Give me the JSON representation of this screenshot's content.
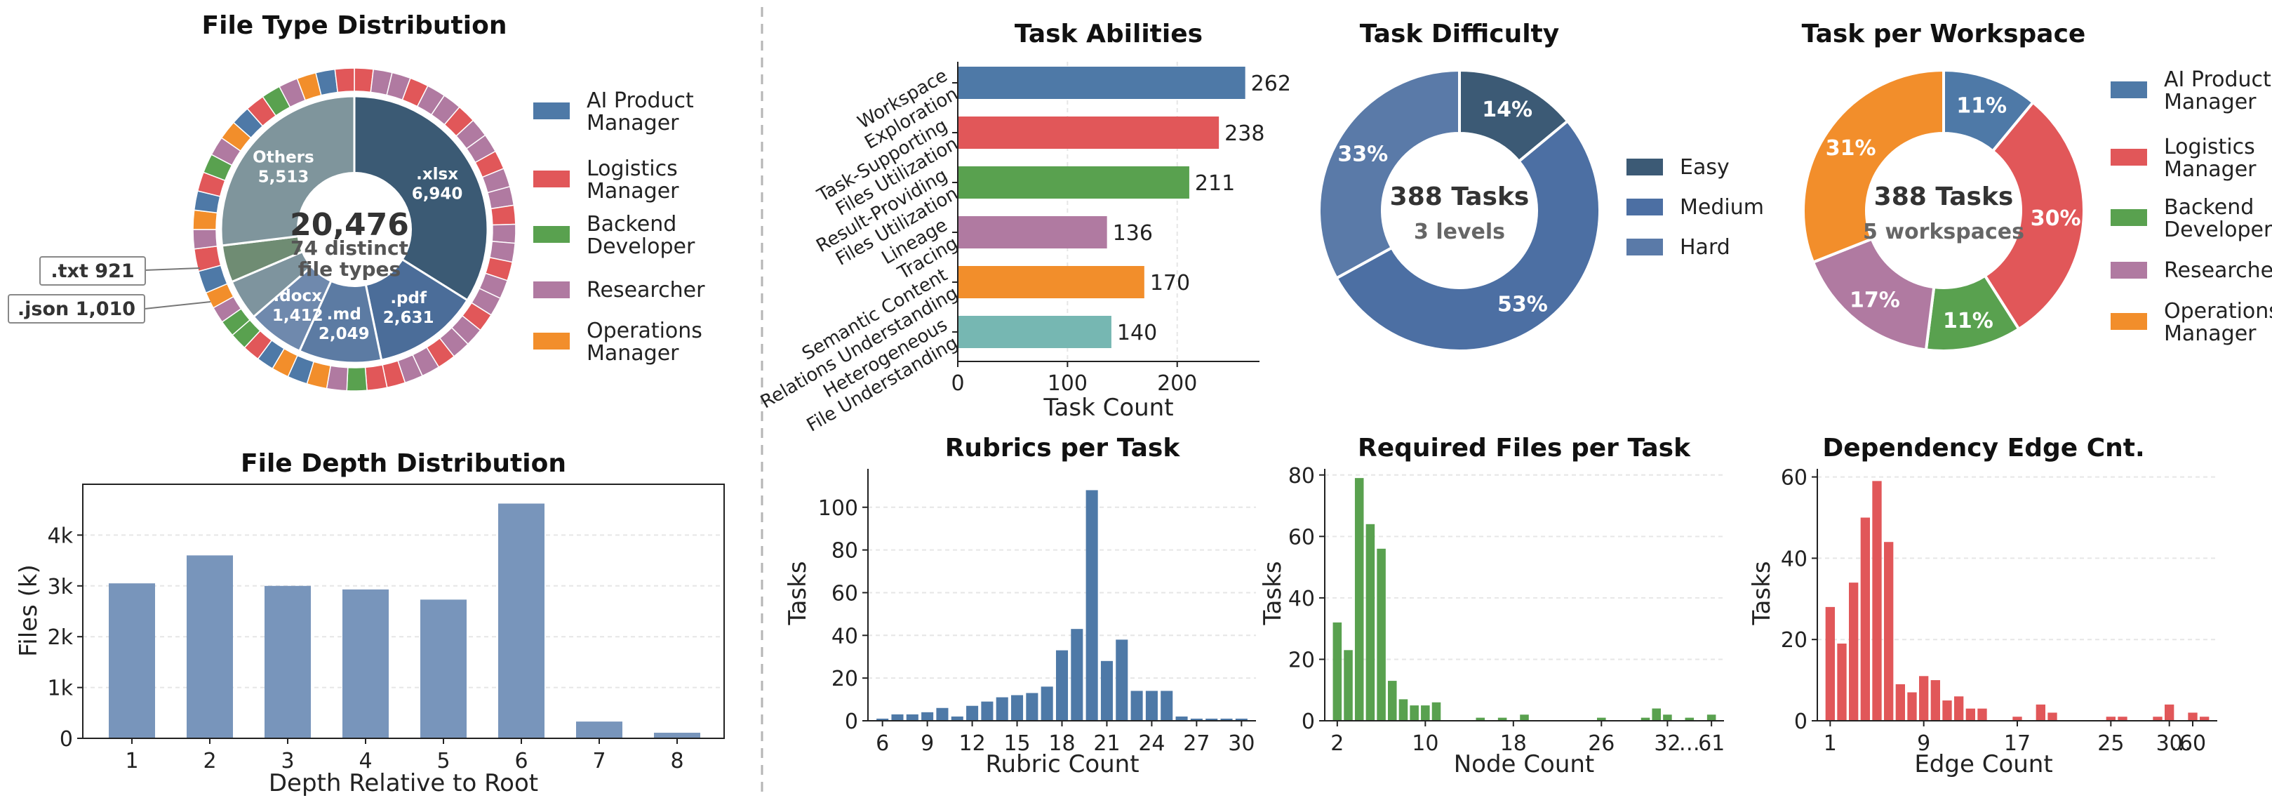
{
  "chart_data": [
    {
      "id": "filetype",
      "type": "pie",
      "title": "File Type Distribution",
      "center": {
        "total": "20,476",
        "line1": "74 distinct",
        "line2": "file types"
      },
      "slices": [
        {
          "label": ".xlsx",
          "value": 6940,
          "text": "6,940",
          "color": "#3b5a74"
        },
        {
          "label": ".pdf",
          "value": 2631,
          "text": "2,631",
          "color": "#4b6d99"
        },
        {
          "label": ".md",
          "value": 2049,
          "text": "2,049",
          "color": "#5c7ba3"
        },
        {
          "label": ".docx",
          "value": 1412,
          "text": "1,412",
          "color": "#6f89ad"
        },
        {
          "label": ".json",
          "value": 1010,
          "text": "1,010",
          "color": "#7e949e"
        },
        {
          "label": ".txt",
          "value": 921,
          "text": "921",
          "color": "#6f8c73"
        },
        {
          "label": "Others",
          "value": 5513,
          "text": "5,513",
          "color": "#7f959c"
        }
      ],
      "callouts": [
        ".txt 921",
        ".json 1,010"
      ],
      "legend": [
        {
          "label": "AI Product Manager",
          "lines": [
            "AI Product",
            "Manager"
          ],
          "color": "#4e79a7"
        },
        {
          "label": "Logistics Manager",
          "lines": [
            "Logistics",
            "Manager"
          ],
          "color": "#e15759"
        },
        {
          "label": "Backend Developer",
          "lines": [
            "Backend",
            "Developer"
          ],
          "color": "#59a14f"
        },
        {
          "label": "Researcher",
          "lines": [
            "Researcher"
          ],
          "color": "#b07aa1"
        },
        {
          "label": "Operations Manager",
          "lines": [
            "Operations",
            "Manager"
          ],
          "color": "#f28e2b"
        }
      ]
    },
    {
      "id": "depth",
      "type": "bar",
      "title": "File Depth Distribution",
      "xlabel": "Depth Relative to Root",
      "ylabel": "Files (k)",
      "categories": [
        "1",
        "2",
        "3",
        "4",
        "5",
        "6",
        "7",
        "8"
      ],
      "values": [
        3.05,
        3.6,
        3.0,
        2.93,
        2.73,
        4.62,
        0.33,
        0.11
      ],
      "ylim": [
        0,
        5
      ],
      "yticks": [
        0,
        1,
        2,
        3,
        4
      ],
      "ytick_labels": [
        "0",
        "1k",
        "2k",
        "3k",
        "4k"
      ],
      "color": "#7895bb"
    },
    {
      "id": "abilities",
      "type": "bar",
      "orientation": "horizontal",
      "title": "Task Abilities",
      "xlabel": "Task Count",
      "categories": [
        [
          "Workspace",
          "Exploration"
        ],
        [
          "Task-Supporting",
          "Files Utilization"
        ],
        [
          "Result-Providing",
          "Files Utilization"
        ],
        [
          "Lineage",
          "Tracing"
        ],
        [
          "Semantic Content",
          "Relations Understanding"
        ],
        [
          "Heterogeneous",
          "File Understanding"
        ]
      ],
      "values": [
        262,
        238,
        211,
        136,
        170,
        140
      ],
      "colors": [
        "#4e79a7",
        "#e15759",
        "#59a14f",
        "#b07aa1",
        "#f28e2b",
        "#76b7b2"
      ],
      "xlim": [
        0,
        275
      ],
      "xticks": [
        0,
        100,
        200
      ]
    },
    {
      "id": "difficulty",
      "type": "pie",
      "title": "Task Difficulty",
      "center": {
        "line1": "388 Tasks",
        "line2": "3 levels"
      },
      "slices": [
        {
          "label": "Easy",
          "value": 14,
          "text": "14%",
          "color": "#3c5a75"
        },
        {
          "label": "Medium",
          "value": 53,
          "text": "53%",
          "color": "#4c6fa3"
        },
        {
          "label": "Hard",
          "value": 33,
          "text": "33%",
          "color": "#5a7aa8"
        }
      ],
      "legend": [
        {
          "label": "Easy",
          "color": "#3c5a75"
        },
        {
          "label": "Medium",
          "color": "#4c6fa3"
        },
        {
          "label": "Hard",
          "color": "#5a7aa8"
        }
      ]
    },
    {
      "id": "workspace",
      "type": "pie",
      "title": "Task per Workspace",
      "center": {
        "line1": "388 Tasks",
        "line2": "5 workspaces"
      },
      "slices": [
        {
          "label": "AI Product Manager",
          "value": 11,
          "text": "11%",
          "color": "#4e79a7"
        },
        {
          "label": "Logistics Manager",
          "value": 30,
          "text": "30%",
          "color": "#e15759"
        },
        {
          "label": "Backend Developer",
          "value": 11,
          "text": "11%",
          "color": "#59a14f"
        },
        {
          "label": "Researcher",
          "value": 17,
          "text": "17%",
          "color": "#b07aa1"
        },
        {
          "label": "Operations Manager",
          "value": 31,
          "text": "31%",
          "color": "#f28e2b"
        }
      ],
      "legend": [
        {
          "label": "AI Product Manager",
          "lines": [
            "AI Product",
            "Manager"
          ],
          "color": "#4e79a7"
        },
        {
          "label": "Logistics Manager",
          "lines": [
            "Logistics",
            "Manager"
          ],
          "color": "#e15759"
        },
        {
          "label": "Backend Developer",
          "lines": [
            "Backend",
            "Developer"
          ],
          "color": "#59a14f"
        },
        {
          "label": "Researcher",
          "lines": [
            "Researcher"
          ],
          "color": "#b07aa1"
        },
        {
          "label": "Operations Manager",
          "lines": [
            "Operations",
            "Manager"
          ],
          "color": "#f28e2b"
        }
      ]
    },
    {
      "id": "rubrics",
      "type": "bar",
      "title": "Rubrics per Task",
      "xlabel": "Rubric Count",
      "ylabel": "Tasks",
      "x": [
        6,
        7,
        8,
        9,
        10,
        11,
        12,
        13,
        14,
        15,
        16,
        17,
        18,
        19,
        20,
        21,
        22,
        23,
        24,
        25,
        26,
        27,
        28,
        29,
        30
      ],
      "values": [
        1,
        3,
        3,
        4,
        6,
        2,
        7,
        9,
        11,
        12,
        13,
        16,
        33,
        43,
        108,
        28,
        38,
        14,
        14,
        14,
        2,
        1,
        1,
        1,
        1
      ],
      "xticks": [
        6,
        9,
        12,
        15,
        18,
        21,
        24,
        27,
        30
      ],
      "ylim": [
        0,
        118
      ],
      "yticks": [
        0,
        20,
        40,
        60,
        80,
        100
      ],
      "color": "#4e79a7"
    },
    {
      "id": "required",
      "type": "bar",
      "title": "Required Files per Task",
      "xlabel": "Node Count",
      "ylabel": "Tasks",
      "x": [
        "2",
        "3",
        "4",
        "5",
        "6",
        "7",
        "8",
        "9",
        "10",
        "11",
        "12",
        "13",
        "14",
        "15",
        "16",
        "17",
        "18",
        "19",
        "20",
        "21",
        "22",
        "23",
        "24",
        "25",
        "26",
        "27",
        "28",
        "29",
        "30",
        "31",
        "32",
        "33",
        "34",
        "35",
        "61"
      ],
      "values": [
        32,
        23,
        79,
        64,
        56,
        13,
        7,
        5,
        5,
        6,
        0,
        0,
        0,
        1,
        0,
        1,
        0,
        2,
        0,
        0,
        0,
        0,
        0,
        0,
        1,
        0,
        0,
        0,
        1,
        4,
        2,
        0,
        1,
        0,
        2
      ],
      "xticks": [
        "2",
        "10",
        "18",
        "26",
        "32",
        "…",
        "61"
      ],
      "ylim": [
        0,
        82
      ],
      "yticks": [
        0,
        20,
        40,
        60,
        80
      ],
      "color": "#59a14f"
    },
    {
      "id": "edges",
      "type": "bar",
      "title": "Dependency Edge Cnt.",
      "xlabel": "Edge Count",
      "ylabel": "Tasks",
      "x": [
        "1",
        "2",
        "3",
        "4",
        "5",
        "6",
        "7",
        "8",
        "9",
        "10",
        "11",
        "12",
        "13",
        "14",
        "15",
        "16",
        "17",
        "18",
        "19",
        "20",
        "21",
        "22",
        "23",
        "24",
        "25",
        "26",
        "27",
        "28",
        "29",
        "30",
        "31",
        "60",
        "61"
      ],
      "values": [
        28,
        19,
        34,
        50,
        59,
        44,
        9,
        7,
        11,
        10,
        5,
        6,
        3,
        3,
        0,
        0,
        1,
        0,
        4,
        2,
        0,
        0,
        0,
        0,
        1,
        1,
        0,
        0,
        1,
        4,
        0,
        2,
        1
      ],
      "xticks": [
        "1",
        "9",
        "17",
        "25",
        "30",
        "…",
        "60"
      ],
      "ylim": [
        0,
        62
      ],
      "yticks": [
        0,
        20,
        40,
        60
      ],
      "color": "#e15759"
    }
  ]
}
